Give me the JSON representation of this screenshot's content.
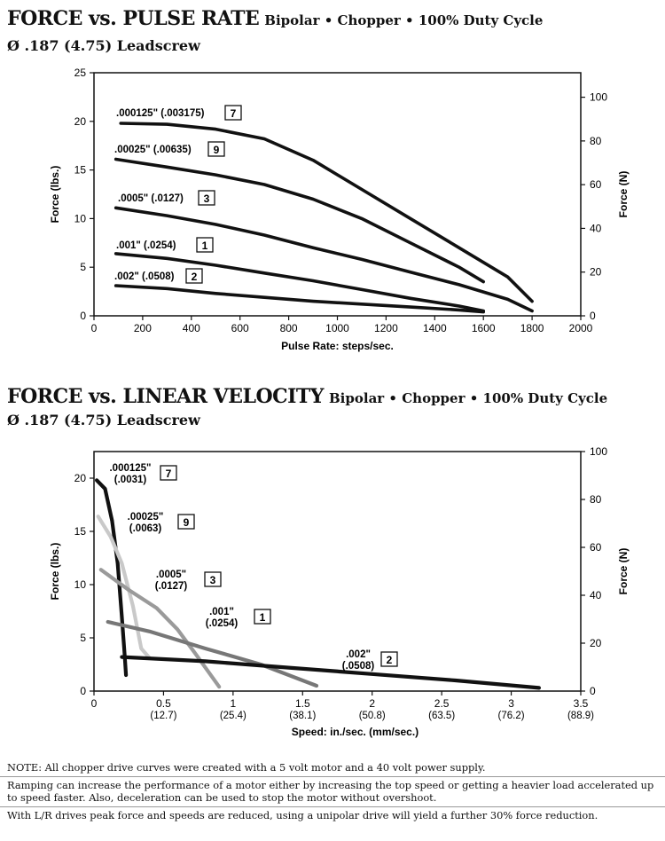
{
  "chart_data": [
    {
      "type": "line",
      "title": "FORCE vs. PULSE RATE",
      "title_suffix": "Bipolar • Chopper • 100% Duty Cycle",
      "subtitle": "Ø .187 (4.75) Leadscrew",
      "xlabel": "Pulse Rate:  steps/sec.",
      "ylabel": "Force (lbs.)",
      "y2label": "Force (N)",
      "xlim": [
        0,
        2000
      ],
      "ylim": [
        0,
        25
      ],
      "y2lim": [
        0,
        111.2
      ],
      "xticks": [
        "0",
        "200",
        "400",
        "600",
        "800",
        "1000",
        "1200",
        "1400",
        "1600",
        "1800",
        "2000"
      ],
      "yticks": [
        "0",
        "5",
        "10",
        "15",
        "20",
        "25"
      ],
      "y2ticks": [
        "0",
        "20",
        "40",
        "60",
        "80",
        "100"
      ],
      "grid": false,
      "series": [
        {
          "name": ".000125\" (.003175)",
          "num": "7",
          "color": "#111111",
          "points": [
            [
              110,
              19.8
            ],
            [
              300,
              19.7
            ],
            [
              500,
              19.2
            ],
            [
              700,
              18.2
            ],
            [
              900,
              16.0
            ],
            [
              1100,
              13.0
            ],
            [
              1300,
              10.0
            ],
            [
              1500,
              7.0
            ],
            [
              1700,
              4.0
            ],
            [
              1800,
              1.5
            ]
          ]
        },
        {
          "name": ".00025\" (.00635)",
          "num": "9",
          "color": "#111111",
          "points": [
            [
              90,
              16.1
            ],
            [
              300,
              15.3
            ],
            [
              500,
              14.5
            ],
            [
              700,
              13.5
            ],
            [
              900,
              12.0
            ],
            [
              1100,
              10.0
            ],
            [
              1300,
              7.5
            ],
            [
              1500,
              5.0
            ],
            [
              1600,
              3.5
            ]
          ]
        },
        {
          "name": ".0005\" (.0127)",
          "num": "3",
          "color": "#111111",
          "points": [
            [
              90,
              11.1
            ],
            [
              300,
              10.3
            ],
            [
              500,
              9.4
            ],
            [
              700,
              8.3
            ],
            [
              900,
              7.0
            ],
            [
              1100,
              5.8
            ],
            [
              1300,
              4.5
            ],
            [
              1500,
              3.2
            ],
            [
              1700,
              1.7
            ],
            [
              1800,
              0.5
            ]
          ]
        },
        {
          "name": ".001\" (.0254)",
          "num": "1",
          "color": "#111111",
          "points": [
            [
              90,
              6.4
            ],
            [
              300,
              5.9
            ],
            [
              500,
              5.2
            ],
            [
              700,
              4.4
            ],
            [
              900,
              3.6
            ],
            [
              1100,
              2.7
            ],
            [
              1300,
              1.8
            ],
            [
              1500,
              1.0
            ],
            [
              1600,
              0.5
            ]
          ]
        },
        {
          "name": ".002\" (.0508)",
          "num": "2",
          "color": "#111111",
          "points": [
            [
              90,
              3.1
            ],
            [
              300,
              2.8
            ],
            [
              500,
              2.3
            ],
            [
              700,
              1.9
            ],
            [
              900,
              1.5
            ],
            [
              1100,
              1.2
            ],
            [
              1300,
              0.9
            ],
            [
              1500,
              0.6
            ],
            [
              1600,
              0.4
            ]
          ]
        }
      ]
    },
    {
      "type": "line",
      "title": "FORCE vs. LINEAR VELOCITY",
      "title_suffix": "Bipolar • Chopper • 100% Duty Cycle",
      "subtitle": "Ø .187 (4.75) Leadscrew",
      "xlabel": "Speed:  in./sec. (mm/sec.)",
      "ylabel": "Force (lbs.)",
      "y2label": "Force (N)",
      "xlim": [
        0,
        3.5
      ],
      "ylim": [
        0,
        22.5
      ],
      "y2lim": [
        0,
        100
      ],
      "xticks": [
        [
          "0",
          ""
        ],
        [
          "0.5",
          "(12.7)"
        ],
        [
          "1",
          "(25.4)"
        ],
        [
          "1.5",
          "(38.1)"
        ],
        [
          "2",
          "(50.8)"
        ],
        [
          "2.5",
          "(63.5)"
        ],
        [
          "3",
          "(76.2)"
        ],
        [
          "3.5",
          "(88.9)"
        ]
      ],
      "yticks": [
        "0",
        "5",
        "10",
        "15",
        "20"
      ],
      "y2ticks": [
        "0",
        "20",
        "40",
        "60",
        "80",
        "100"
      ],
      "grid": false,
      "series": [
        {
          "name_top": ".000125\"",
          "name_bottom": "(.0031)",
          "num": "7",
          "color": "#111111",
          "points": [
            [
              0.02,
              19.8
            ],
            [
              0.08,
              19.0
            ],
            [
              0.13,
              16.0
            ],
            [
              0.17,
              12.0
            ],
            [
              0.2,
              7.0
            ],
            [
              0.22,
              3.5
            ],
            [
              0.23,
              1.5
            ]
          ]
        },
        {
          "name_top": ".00025\"",
          "name_bottom": "(.0063)",
          "num": "9",
          "color": "#c9c9c9",
          "points": [
            [
              0.03,
              16.4
            ],
            [
              0.12,
              14.5
            ],
            [
              0.2,
              12.0
            ],
            [
              0.28,
              8.0
            ],
            [
              0.34,
              4.0
            ],
            [
              0.4,
              3.1
            ]
          ]
        },
        {
          "name_top": ".0005\"",
          "name_bottom": "(.0127)",
          "num": "3",
          "color": "#9a9a9a",
          "points": [
            [
              0.05,
              11.4
            ],
            [
              0.25,
              9.5
            ],
            [
              0.45,
              7.8
            ],
            [
              0.6,
              5.8
            ],
            [
              0.73,
              3.5
            ],
            [
              0.9,
              0.4
            ]
          ]
        },
        {
          "name_top": ".001\"",
          "name_bottom": "(.0254)",
          "num": "1",
          "color": "#777777",
          "points": [
            [
              0.1,
              6.5
            ],
            [
              0.4,
              5.6
            ],
            [
              0.8,
              4.0
            ],
            [
              1.2,
              2.5
            ],
            [
              1.6,
              0.5
            ]
          ]
        },
        {
          "name_top": ".002\"",
          "name_bottom": "(.0508)",
          "num": "2",
          "color": "#111111",
          "points": [
            [
              0.2,
              3.2
            ],
            [
              0.8,
              2.8
            ],
            [
              1.4,
              2.2
            ],
            [
              2.0,
              1.6
            ],
            [
              2.6,
              1.0
            ],
            [
              3.2,
              0.3
            ]
          ]
        }
      ]
    }
  ],
  "notes": [
    "NOTE: All chopper drive curves were created with a 5 volt motor and a 40 volt power supply.",
    "Ramping can increase the performance of a motor either by increasing the top speed or getting a heavier load accelerated up to speed faster.  Also, deceleration can be used to stop the motor without overshoot.",
    "With L/R drives peak force and speeds are reduced, using a unipolar drive will yield a further 30% force reduction."
  ]
}
